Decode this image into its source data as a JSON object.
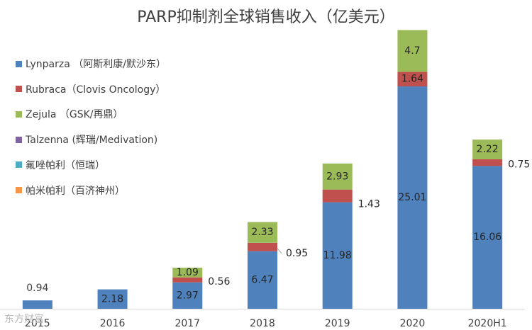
{
  "chart_data": {
    "type": "bar",
    "stacked": true,
    "title": "PARP抑制剂全球销售收入（亿美元）",
    "categories": [
      "2015",
      "2016",
      "2017",
      "2018",
      "2019",
      "2020",
      "2020H1"
    ],
    "series": [
      {
        "name": "Lynparza （阿斯利康/默沙东）",
        "color": "#4f81bd",
        "values": [
          0.94,
          2.18,
          2.97,
          6.47,
          11.98,
          25.01,
          16.06
        ]
      },
      {
        "name": "Rubraca（Clovis Oncology）",
        "color": "#c0504d",
        "values": [
          0,
          0,
          0.56,
          0.95,
          1.43,
          1.64,
          0.75
        ]
      },
      {
        "name": "Zejula （GSK/再鼎）",
        "color": "#9bbb59",
        "values": [
          0,
          0,
          1.09,
          2.33,
          2.93,
          4.7,
          2.22
        ]
      },
      {
        "name": "Talzenna (辉瑞/Medivation)",
        "color": "#8064a2",
        "values": [
          0,
          0,
          0,
          0,
          0,
          0,
          0
        ]
      },
      {
        "name": "氟唑帕利（恒瑞）",
        "color": "#4bacc6",
        "values": [
          0,
          0,
          0,
          0,
          0,
          0,
          0
        ]
      },
      {
        "name": "帕米帕利（百济神州）",
        "color": "#f79646",
        "values": [
          0,
          0,
          0,
          0,
          0,
          0,
          0
        ]
      }
    ],
    "data_labels": [
      [
        "0.94",
        "2.18",
        "2.97",
        "6.47",
        "11.98",
        "25.01",
        "16.06"
      ],
      [
        "",
        "",
        "0.56",
        "0.95",
        "1.43",
        "1.64",
        "0.75"
      ],
      [
        "",
        "",
        "1.09",
        "2.33",
        "2.93",
        "4.7",
        "2.22"
      ]
    ],
    "ylim": [
      0,
      32.5
    ],
    "legend_position": "top-left",
    "grid": false
  },
  "watermark": "东方财富"
}
